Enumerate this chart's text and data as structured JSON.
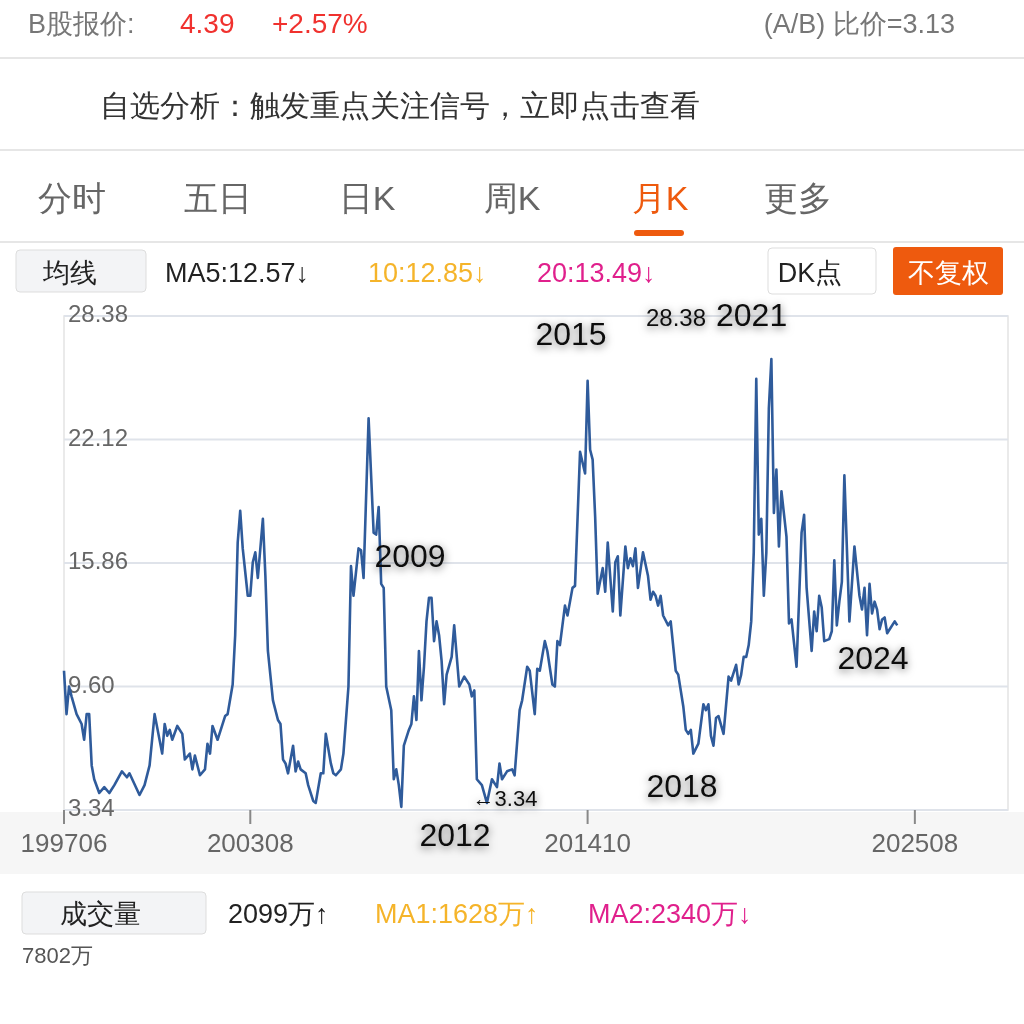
{
  "chart_data": {
    "type": "line",
    "title": "B股报价:",
    "subtitle": "自选分析：触发重点关注信号，立即点击查看",
    "x": [
      "1997-06",
      "1997-07",
      "1997-08",
      "1997-09",
      "1997-11",
      "1998-01",
      "1998-02",
      "1998-03",
      "1998-04",
      "1998-05",
      "1998-06",
      "1998-08",
      "1998-10",
      "1998-12",
      "1999-02",
      "1999-05",
      "1999-07",
      "1999-08",
      "1999-12",
      "2000-02",
      "2000-04",
      "2000-06",
      "2000-09",
      "2000-10",
      "2000-11",
      "2000-12",
      "2001-01",
      "2001-03",
      "2001-05",
      "2001-06",
      "2001-08",
      "2001-09",
      "2001-10",
      "2001-12",
      "2002-02",
      "2002-03",
      "2002-04",
      "2002-05",
      "2002-07",
      "2002-10",
      "2002-11",
      "2003-01",
      "2003-02",
      "2003-03",
      "2003-04",
      "2003-05",
      "2003-07",
      "2003-08",
      "2003-09",
      "2003-10",
      "2003-11",
      "2004-01",
      "2004-02",
      "2004-03",
      "2004-05",
      "2004-07",
      "2004-08",
      "2004-09",
      "2004-10",
      "2004-11",
      "2005-01",
      "2005-02",
      "2005-03",
      "2005-04",
      "2005-06",
      "2005-07",
      "2005-09",
      "2005-10",
      "2005-12",
      "2006-01",
      "2006-02",
      "2006-04",
      "2006-05",
      "2006-06",
      "2006-08",
      "2006-09",
      "2006-11",
      "2006-12",
      "2007-01",
      "2007-03",
      "2007-04",
      "2007-05",
      "2007-07",
      "2007-09",
      "2007-10",
      "2007-11",
      "2007-12",
      "2008-01",
      "2008-02",
      "2008-04",
      "2008-05",
      "2008-06",
      "2008-07",
      "2008-08",
      "2008-09",
      "2008-11",
      "2008-12",
      "2009-01",
      "2009-02",
      "2009-03",
      "2009-04",
      "2009-05",
      "2009-06",
      "2009-07",
      "2009-08",
      "2009-09",
      "2009-10",
      "2009-11",
      "2009-12",
      "2010-01",
      "2010-02",
      "2010-04",
      "2010-05",
      "2010-07",
      "2010-09",
      "2010-11",
      "2010-12",
      "2011-01",
      "2011-02",
      "2011-04",
      "2011-06",
      "2011-08",
      "2011-10",
      "2011-11",
      "2011-12",
      "2012-02",
      "2012-04",
      "2012-05",
      "2012-07",
      "2012-08",
      "2012-10",
      "2012-11",
      "2013-01",
      "2013-02",
      "2013-03",
      "2013-05",
      "2013-06",
      "2013-08",
      "2013-09",
      "2013-10",
      "2013-11",
      "2014-01",
      "2014-02",
      "2014-04",
      "2014-05",
      "2014-07",
      "2014-09",
      "2014-10",
      "2014-11",
      "2014-12",
      "2015-01",
      "2015-02",
      "2015-04",
      "2015-05",
      "2015-06",
      "2015-08",
      "2015-09",
      "2015-10",
      "2015-11",
      "2016-01",
      "2016-02",
      "2016-03",
      "2016-04",
      "2016-05",
      "2016-06",
      "2016-08",
      "2016-10",
      "2016-11",
      "2016-12",
      "2017-01",
      "2017-02",
      "2017-03",
      "2017-04",
      "2017-06",
      "2017-07",
      "2017-09",
      "2017-10",
      "2017-12",
      "2018-01",
      "2018-02",
      "2018-03",
      "2018-04",
      "2018-06",
      "2018-08",
      "2018-09",
      "2018-10",
      "2018-11",
      "2018-12",
      "2019-01",
      "2019-02",
      "2019-04",
      "2019-06",
      "2019-07",
      "2019-09",
      "2019-10",
      "2019-11",
      "2019-12",
      "2020-01",
      "2020-02",
      "2020-03",
      "2020-04",
      "2020-05",
      "2020-06",
      "2020-07",
      "2020-08",
      "2020-09",
      "2020-10",
      "2020-11",
      "2020-12",
      "2021-01",
      "2021-02",
      "2021-03",
      "2021-05",
      "2021-06",
      "2021-07",
      "2021-09",
      "2021-11",
      "2021-12",
      "2022-01",
      "2022-03",
      "2022-04",
      "2022-05",
      "2022-06",
      "2022-07",
      "2022-08",
      "2022-10",
      "2022-11",
      "2022-12",
      "2023-01",
      "2023-02",
      "2023-03",
      "2023-04",
      "2023-06",
      "2023-08",
      "2023-10",
      "2023-11",
      "2023-12",
      "2024-01",
      "2024-02",
      "2024-03",
      "2024-04",
      "2024-05",
      "2024-06",
      "2024-07",
      "2024-08",
      "2024-09",
      "2024-10",
      "2024-12",
      "2025-01"
    ],
    "series": [
      {
        "color": "#2f5b9b",
        "values": [
          10.4,
          8.2,
          9.6,
          9.1,
          8.2,
          7.7,
          6.9,
          8.2,
          8.2,
          5.6,
          4.9,
          4.2,
          4.5,
          4.2,
          4.6,
          5.3,
          5.0,
          5.2,
          4.1,
          4.6,
          5.6,
          8.2,
          6.2,
          7.7,
          7.1,
          7.4,
          6.9,
          7.6,
          7.2,
          5.9,
          6.2,
          5.4,
          6.1,
          5.1,
          5.4,
          6.7,
          6.2,
          7.6,
          6.9,
          8.1,
          8.2,
          9.7,
          12.2,
          16.9,
          18.5,
          16.6,
          14.2,
          14.2,
          15.9,
          16.4,
          15.1,
          18.1,
          15.2,
          11.4,
          8.9,
          7.9,
          7.7,
          5.9,
          5.7,
          5.2,
          6.6,
          5.3,
          5.8,
          5.4,
          5.2,
          4.6,
          3.8,
          3.7,
          5.2,
          5.2,
          7.2,
          5.7,
          5.2,
          5.1,
          5.4,
          6.2,
          9.6,
          15.7,
          14.2,
          16.6,
          16.5,
          15.1,
          23.2,
          17.4,
          17.3,
          18.7,
          14.8,
          14.6,
          9.6,
          8.4,
          4.9,
          5.4,
          4.6,
          3.5,
          6.6,
          7.4,
          7.7,
          9.1,
          7.9,
          11.4,
          8.9,
          10.6,
          12.9,
          14.1,
          14.1,
          11.9,
          12.9,
          12.2,
          10.9,
          8.7,
          10.2,
          11.1,
          12.7,
          9.6,
          10.1,
          9.7,
          9.1,
          9.4,
          4.9,
          4.6,
          3.7,
          4.9,
          4.5,
          5.7,
          4.9,
          5.3,
          5.4,
          5.1,
          8.4,
          8.9,
          10.6,
          10.4,
          8.2,
          10.5,
          10.4,
          11.9,
          11.4,
          9.7,
          9.6,
          11.9,
          11.7,
          13.7,
          13.2,
          14.6,
          14.7,
          21.5,
          20.4,
          25.1,
          21.6,
          21.1,
          18.2,
          14.3,
          15.6,
          14.4,
          16.9,
          13.4,
          15.9,
          16.2,
          13.2,
          16.7,
          15.6,
          16.1,
          15.7,
          16.6,
          14.6,
          16.4,
          15.2,
          14.0,
          14.4,
          14.2,
          13.7,
          14.2,
          13.2,
          12.7,
          12.9,
          10.4,
          10.2,
          8.6,
          7.4,
          7.2,
          7.4,
          6.2,
          6.7,
          8.7,
          8.4,
          8.7,
          7.1,
          6.6,
          8.0,
          8.1,
          7.2,
          10.1,
          9.9,
          10.7,
          9.7,
          10.2,
          11.1,
          11.1,
          11.7,
          12.9,
          16.4,
          25.2,
          17.3,
          18.1,
          14.2,
          16.4,
          23.7,
          26.2,
          18.4,
          20.6,
          16.7,
          19.5,
          17.2,
          12.8,
          13.0,
          10.6,
          17.4,
          18.3,
          14.6,
          11.4,
          13.4,
          12.4,
          14.2,
          13.6,
          11.9,
          12.0,
          12.4,
          16.0,
          12.7,
          13.9,
          14.9,
          20.3,
          12.9,
          16.7,
          14.2,
          13.5,
          14.6,
          12.2,
          14.8,
          13.3,
          13.9,
          13.5,
          12.5,
          13.0,
          13.1,
          12.3,
          12.5,
          12.9,
          12.7
        ]
      }
    ],
    "xlim": [
      "1997-06",
      "2028-09"
    ],
    "xticks": [
      {
        "value": "1997-06",
        "label": "199706"
      },
      {
        "value": "2003-08",
        "label": "200308"
      },
      {
        "value": "2014-10",
        "label": "201410"
      },
      {
        "value": "2025-08",
        "label": "202508"
      }
    ],
    "ylim": [
      3.34,
      28.38
    ],
    "yticks": [
      3.34,
      {
        "value": 9.6,
        "label": "9.60"
      },
      15.86,
      22.12,
      28.38
    ],
    "grid": "y",
    "annotations": [
      "4.39",
      "+2.57%",
      "(A/B) 比价=3.13",
      "分时",
      "五日",
      "日K",
      "周K",
      "月K",
      "更多",
      "均线",
      "MA5:12.57↓",
      "10:12.85↓",
      "20:13.49↓",
      "DK点",
      "不复权",
      "成交量",
      "2099万↑",
      "MA1:1628万↑",
      "MA2:2340万↓",
      "7802万",
      "2009",
      "2015",
      "28.38",
      "2021",
      "2018",
      "2012",
      "←3.34",
      "2024"
    ]
  }
}
